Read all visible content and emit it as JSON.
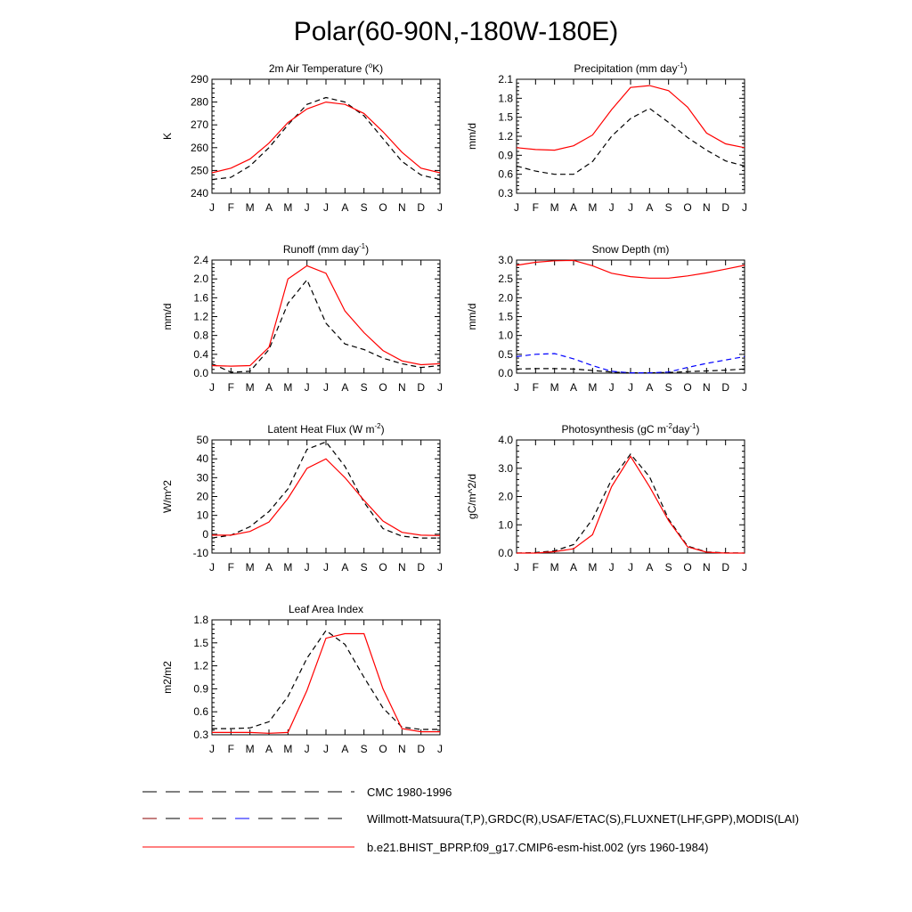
{
  "figure_title": "Polar(60-90N,-180W-180E)",
  "months": [
    "J",
    "F",
    "M",
    "A",
    "M",
    "J",
    "J",
    "A",
    "S",
    "O",
    "N",
    "D",
    "J"
  ],
  "legend": [
    {
      "label": "CMC 1980-1996",
      "style": "black-dash"
    },
    {
      "label": "Willmott-Matsuura(T,P),GRDC(R),USAF/ETAC(S),FLUXNET(LHF,GPP),MODIS(LAI)",
      "style": "multi-dash"
    },
    {
      "label": "b.e21.BHIST_BPRP.f09_g17.CMIP6-esm-hist.002 (yrs 1960-1984)",
      "style": "red-solid"
    }
  ],
  "colors": {
    "model": "#ff0000",
    "obs": "#000000",
    "cmc": "#0000ff"
  },
  "chart_data": [
    {
      "type": "line",
      "title": "2m Air Temperature (",
      "title_sup": "o",
      "title_tail": "K)",
      "ylabel": "K",
      "ylim": [
        240,
        290
      ],
      "yticks": [
        240,
        250,
        260,
        270,
        280,
        290
      ],
      "ytick_labels": [
        "240",
        "250",
        "260",
        "270",
        "280",
        "290"
      ],
      "series": [
        {
          "role": "obs",
          "values": [
            246,
            247,
            252,
            260,
            270,
            279,
            282,
            280,
            274,
            264,
            254,
            248,
            246
          ]
        },
        {
          "role": "model",
          "values": [
            249,
            251,
            255,
            262,
            271,
            277,
            280,
            279,
            275,
            267,
            258,
            251,
            249
          ]
        }
      ]
    },
    {
      "type": "line",
      "title": "Precipitation (mm day",
      "title_sup": "-1",
      "title_tail": ")",
      "ylabel": "mm/d",
      "ylim": [
        0.3,
        2.1
      ],
      "yticks": [
        0.3,
        0.6,
        0.9,
        1.2,
        1.5,
        1.8,
        2.1
      ],
      "ytick_labels": [
        "0.3",
        "0.6",
        "0.9",
        "1.2",
        "1.5",
        "1.8",
        "2.1"
      ],
      "series": [
        {
          "role": "obs",
          "values": [
            0.73,
            0.65,
            0.6,
            0.6,
            0.8,
            1.2,
            1.48,
            1.64,
            1.42,
            1.18,
            0.98,
            0.81,
            0.73
          ]
        },
        {
          "role": "model",
          "values": [
            1.02,
            0.99,
            0.98,
            1.05,
            1.22,
            1.62,
            1.97,
            2.0,
            1.92,
            1.66,
            1.25,
            1.08,
            1.02
          ]
        }
      ]
    },
    {
      "type": "line",
      "title": "Runoff (mm day",
      "title_sup": "-1",
      "title_tail": ")",
      "ylabel": "mm/d",
      "ylim": [
        0.0,
        2.4
      ],
      "yticks": [
        0.0,
        0.4,
        0.8,
        1.2,
        1.6,
        2.0,
        2.4
      ],
      "ytick_labels": [
        "0.0",
        "0.4",
        "0.8",
        "1.2",
        "1.6",
        "2.0",
        "2.4"
      ],
      "series": [
        {
          "role": "obs",
          "values": [
            0.2,
            0.02,
            0.04,
            0.5,
            1.48,
            1.98,
            1.06,
            0.62,
            0.5,
            0.32,
            0.2,
            0.12,
            0.16
          ]
        },
        {
          "role": "model",
          "values": [
            0.16,
            0.15,
            0.16,
            0.55,
            2.0,
            2.28,
            2.12,
            1.32,
            0.86,
            0.48,
            0.26,
            0.18,
            0.2
          ]
        }
      ]
    },
    {
      "type": "line",
      "title": "Snow Depth (m)",
      "title_sup": "",
      "title_tail": "",
      "ylabel": "mm/d",
      "ylim": [
        0.0,
        3.0
      ],
      "yticks": [
        0.0,
        0.5,
        1.0,
        1.5,
        2.0,
        2.5,
        3.0
      ],
      "ytick_labels": [
        "0.0",
        "0.5",
        "1.0",
        "1.5",
        "2.0",
        "2.5",
        "3.0"
      ],
      "series": [
        {
          "role": "obs",
          "values": [
            0.11,
            0.12,
            0.12,
            0.11,
            0.07,
            0.03,
            0.01,
            0.01,
            0.02,
            0.04,
            0.06,
            0.08,
            0.11
          ]
        },
        {
          "role": "cmc",
          "values": [
            0.44,
            0.5,
            0.52,
            0.38,
            0.2,
            0.05,
            0.01,
            0.01,
            0.03,
            0.15,
            0.26,
            0.35,
            0.44
          ]
        },
        {
          "role": "model",
          "values": [
            2.86,
            2.94,
            2.98,
            2.99,
            2.85,
            2.65,
            2.56,
            2.52,
            2.52,
            2.58,
            2.66,
            2.76,
            2.86
          ]
        }
      ]
    },
    {
      "type": "line",
      "title": "Latent Heat Flux (W m",
      "title_sup": "-2",
      "title_tail": ")",
      "ylabel": "W/m^2",
      "ylim": [
        -10,
        50
      ],
      "yticks": [
        -10,
        0,
        10,
        20,
        30,
        40,
        50
      ],
      "ytick_labels": [
        "-10",
        "0",
        "10",
        "20",
        "30",
        "40",
        "50"
      ],
      "series": [
        {
          "role": "obs",
          "values": [
            -2,
            -0.5,
            4,
            12,
            24,
            45,
            49,
            36,
            17,
            3,
            -1,
            -2,
            -2
          ]
        },
        {
          "role": "model",
          "values": [
            -0.5,
            -0.5,
            1.5,
            6.5,
            19,
            35,
            40,
            30,
            18,
            7,
            1,
            -0.5,
            -0.7
          ]
        }
      ]
    },
    {
      "type": "line",
      "title": "Photosynthesis (gC m",
      "title_sup": "-2",
      "title_tail": "day",
      "title_sup2": "-1",
      "title_tail2": ")",
      "ylabel": "gC/m^2/d",
      "ylim": [
        0.0,
        4.0
      ],
      "yticks": [
        0.0,
        1.0,
        2.0,
        3.0,
        4.0
      ],
      "ytick_labels": [
        "0.0",
        "1.0",
        "2.0",
        "3.0",
        "4.0"
      ],
      "series": [
        {
          "role": "obs",
          "values": [
            0.0,
            0.02,
            0.08,
            0.3,
            1.2,
            2.6,
            3.5,
            2.7,
            1.2,
            0.25,
            0.04,
            0.01,
            0.0
          ]
        },
        {
          "role": "model",
          "values": [
            0.0,
            0.0,
            0.05,
            0.15,
            0.65,
            2.35,
            3.42,
            2.35,
            1.15,
            0.22,
            0.03,
            0.0,
            0.0
          ]
        }
      ]
    },
    {
      "type": "line",
      "title": "Leaf Area Index",
      "title_sup": "",
      "title_tail": "",
      "ylabel": "m2/m2",
      "ylim": [
        0.3,
        1.8
      ],
      "yticks": [
        0.3,
        0.6,
        0.9,
        1.2,
        1.5,
        1.8
      ],
      "ytick_labels": [
        "0.3",
        "0.6",
        "0.9",
        "1.2",
        "1.5",
        "1.8"
      ],
      "series": [
        {
          "role": "obs",
          "values": [
            0.38,
            0.38,
            0.39,
            0.47,
            0.8,
            1.3,
            1.66,
            1.48,
            1.05,
            0.65,
            0.4,
            0.37,
            0.37
          ]
        },
        {
          "role": "model",
          "values": [
            0.33,
            0.33,
            0.33,
            0.32,
            0.33,
            0.88,
            1.56,
            1.62,
            1.62,
            0.9,
            0.38,
            0.34,
            0.34
          ]
        }
      ]
    }
  ]
}
